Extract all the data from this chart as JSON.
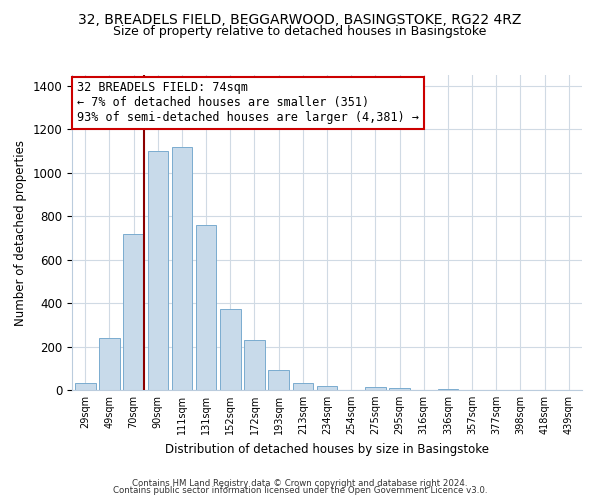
{
  "title": "32, BREADELS FIELD, BEGGARWOOD, BASINGSTOKE, RG22 4RZ",
  "subtitle": "Size of property relative to detached houses in Basingstoke",
  "xlabel": "Distribution of detached houses by size in Basingstoke",
  "ylabel": "Number of detached properties",
  "bin_labels": [
    "29sqm",
    "49sqm",
    "70sqm",
    "90sqm",
    "111sqm",
    "131sqm",
    "152sqm",
    "172sqm",
    "193sqm",
    "213sqm",
    "234sqm",
    "254sqm",
    "275sqm",
    "295sqm",
    "316sqm",
    "336sqm",
    "357sqm",
    "377sqm",
    "398sqm",
    "418sqm",
    "439sqm"
  ],
  "bar_heights": [
    30,
    240,
    720,
    1100,
    1120,
    760,
    375,
    230,
    90,
    30,
    20,
    0,
    15,
    10,
    0,
    5,
    0,
    0,
    0,
    0,
    0
  ],
  "bar_color": "#c8daea",
  "bar_edge_color": "#7aaccf",
  "vline_x_idx": 2,
  "vline_color": "#8b0000",
  "ylim": [
    0,
    1450
  ],
  "yticks": [
    0,
    200,
    400,
    600,
    800,
    1000,
    1200,
    1400
  ],
  "annotation_title": "32 BREADELS FIELD: 74sqm",
  "annotation_line1": "← 7% of detached houses are smaller (351)",
  "annotation_line2": "93% of semi-detached houses are larger (4,381) →",
  "annotation_box_color": "#ffffff",
  "annotation_box_edge": "#cc0000",
  "footer1": "Contains HM Land Registry data © Crown copyright and database right 2024.",
  "footer2": "Contains public sector information licensed under the Open Government Licence v3.0.",
  "background_color": "#ffffff",
  "grid_color": "#d0dae4"
}
